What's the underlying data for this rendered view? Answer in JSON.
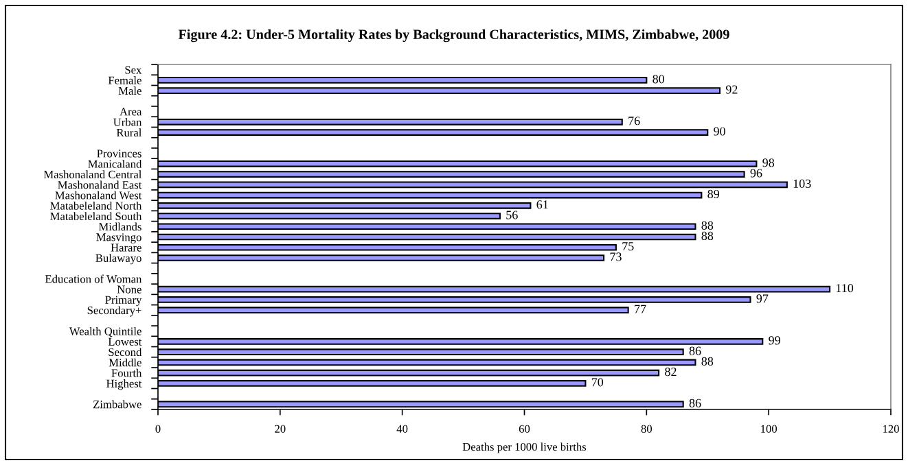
{
  "chart_data": {
    "type": "bar",
    "orientation": "horizontal",
    "title": "Figure 4.2: Under-5 Mortality Rates by Background Characteristics, MIMS, Zimbabwe, 2009",
    "xlabel": "Deaths per 1000 live births",
    "categories": [
      "Sex",
      "Female",
      "Male",
      null,
      "Area",
      "Urban",
      "Rural",
      null,
      "Provinces",
      "Manicaland",
      "Mashonaland Central",
      "Mashonaland East",
      "Mashonaland West",
      "Matabeleland North",
      "Matabeleland South",
      "Midlands",
      "Masvingo",
      "Harare",
      "Bulawayo",
      null,
      "Education of Woman",
      "None",
      "Primary",
      "Secondary+",
      null,
      "Wealth Quintile",
      "Lowest",
      "Second",
      "Middle",
      "Fourth",
      "Highest",
      null,
      "Zimbabwe"
    ],
    "values": [
      null,
      80,
      92,
      null,
      null,
      76,
      90,
      null,
      null,
      98,
      96,
      103,
      89,
      61,
      56,
      88,
      88,
      75,
      73,
      null,
      null,
      110,
      97,
      77,
      null,
      null,
      99,
      86,
      88,
      82,
      70,
      null,
      86
    ],
    "color": "#9999ff",
    "xlim": [
      0,
      120
    ],
    "xticks": [
      0,
      20,
      40,
      60,
      80,
      100,
      120
    ],
    "data_labels": true
  }
}
